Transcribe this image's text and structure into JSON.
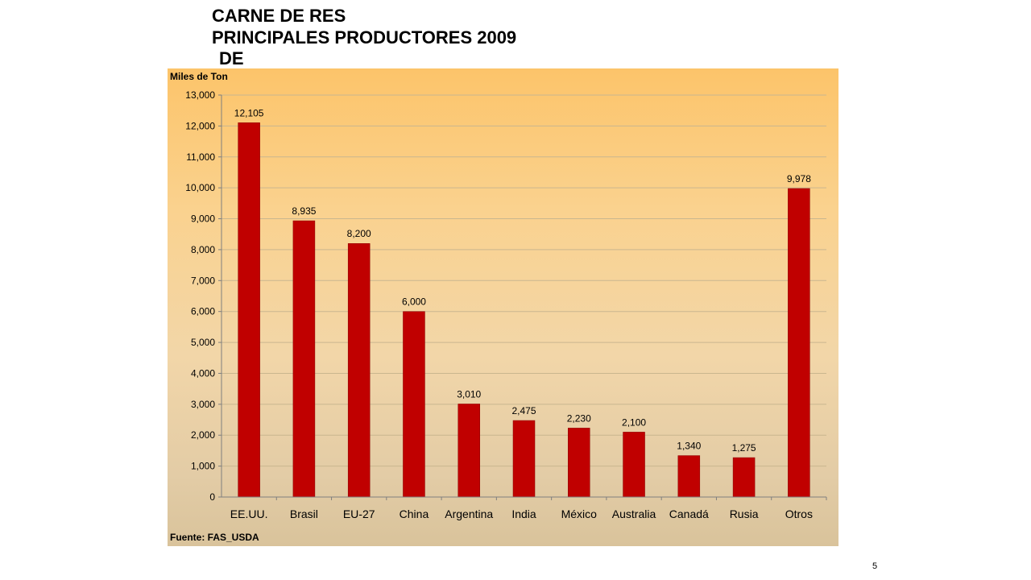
{
  "slide": {
    "title_lines": [
      "CARNE DE RES",
      "PRINCIPALES PRODUCTORES 2009",
      "DE"
    ],
    "page_number": "5"
  },
  "chart_data": {
    "type": "bar",
    "title": "",
    "ylabel": "Miles de Ton",
    "xlabel": "",
    "source": "Fuente: FAS_USDA",
    "categories": [
      "EE.UU.",
      "Brasil",
      "EU-27",
      "China",
      "Argentina",
      "India",
      "México",
      "Australia",
      "Canadá",
      "Rusia",
      "Otros"
    ],
    "values": [
      12105,
      8935,
      8200,
      6000,
      3010,
      2475,
      2230,
      2100,
      1340,
      1275,
      9978
    ],
    "value_labels": [
      "12,105",
      "8,935",
      "8,200",
      "6,000",
      "3,010",
      "2,475",
      "2,230",
      "2,100",
      "1,340",
      "1,275",
      "9,978"
    ],
    "ylim": [
      0,
      13000
    ],
    "yticks": [
      0,
      1000,
      2000,
      3000,
      4000,
      5000,
      6000,
      7000,
      8000,
      9000,
      10000,
      11000,
      12000,
      13000
    ],
    "ytick_labels": [
      "0",
      "1,000",
      "2,000",
      "3,000",
      "4,000",
      "5,000",
      "6,000",
      "7,000",
      "8,000",
      "9,000",
      "10,000",
      "11,000",
      "12,000",
      "13,000"
    ],
    "grid": true,
    "legend": "none",
    "colors": {
      "bar": "#c00000",
      "bar_edge": "#8a0000",
      "grid": "#c9b68f",
      "axis": "#7f7f7f",
      "text": "#000000"
    }
  }
}
